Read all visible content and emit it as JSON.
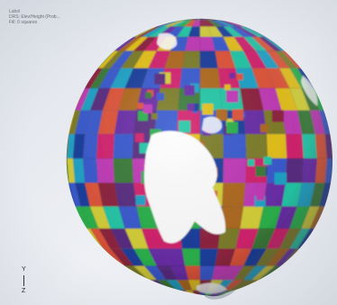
{
  "overlay": {
    "lines": [
      "Label",
      "DRS: Elev/Height (Prob...",
      "Fill: 0 squares"
    ]
  },
  "triad": {
    "y_label": "Y",
    "z_label": "Z"
  },
  "colors": {
    "background": "#e6e9ee",
    "landmass": "#ffffff",
    "mesh_palette": [
      "#d4236f",
      "#2bb24c",
      "#6a2ea8",
      "#1fa4c8",
      "#e6c21b",
      "#e0553a",
      "#7e7e2a",
      "#3a5bd0",
      "#c23bb8",
      "#3c7c3a",
      "#8f2440",
      "#24c8a8",
      "#b06a1f",
      "#5a2d82",
      "#1c3f9e",
      "#d6d13a"
    ]
  }
}
